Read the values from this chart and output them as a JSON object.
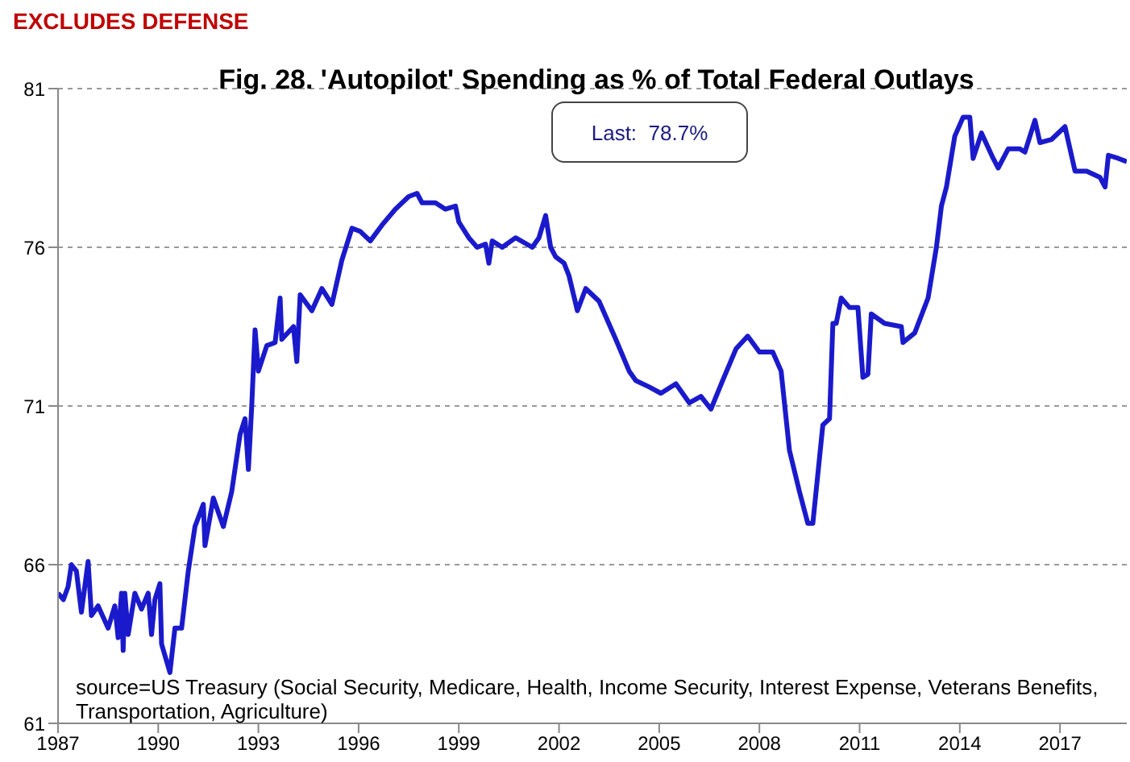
{
  "chart_data": {
    "type": "line",
    "title": "Fig. 28. 'Autopilot' Spending as % of Total Federal Outlays",
    "subtitle": "EXCLUDES DEFENSE",
    "annotations": [
      "Last:  78.7%",
      "source=US Treasury (Social Security, Medicare, Health, Income Security, Interest Expense, Veterans Benefits, Transportation, Agriculture)"
    ],
    "x": [
      1987.0,
      1987.16,
      1987.3,
      1987.4,
      1987.55,
      1987.7,
      1987.8,
      1987.9,
      1988.0,
      1988.2,
      1988.5,
      1988.7,
      1988.8,
      1988.9,
      1988.95,
      1989.0,
      1989.1,
      1989.3,
      1989.5,
      1989.7,
      1989.8,
      1989.9,
      1990.05,
      1990.1,
      1990.35,
      1990.5,
      1990.7,
      1990.9,
      1991.1,
      1991.35,
      1991.4,
      1991.65,
      1991.95,
      1992.2,
      1992.45,
      1992.6,
      1992.7,
      1992.8,
      1992.9,
      1993.0,
      1993.25,
      1993.5,
      1993.65,
      1993.7,
      1994.05,
      1994.15,
      1994.25,
      1994.6,
      1994.9,
      1995.2,
      1995.5,
      1995.8,
      1996.05,
      1996.35,
      1996.7,
      1997.1,
      1997.5,
      1997.75,
      1997.9,
      1998.3,
      1998.6,
      1998.9,
      1999.0,
      1999.3,
      1999.55,
      1999.8,
      1999.9,
      2000.0,
      2000.3,
      2000.7,
      2001.2,
      2001.4,
      2001.6,
      2001.75,
      2001.9,
      2002.15,
      2002.3,
      2002.55,
      2002.8,
      2003.2,
      2003.7,
      2004.1,
      2004.3,
      2004.7,
      2005.05,
      2005.5,
      2005.9,
      2006.25,
      2006.55,
      2006.9,
      2007.3,
      2007.65,
      2008.0,
      2008.4,
      2008.65,
      2008.9,
      2009.2,
      2009.45,
      2009.6,
      2009.9,
      2010.1,
      2010.2,
      2010.3,
      2010.45,
      2010.7,
      2010.95,
      2011.1,
      2011.25,
      2011.35,
      2011.75,
      2012.25,
      2012.3,
      2012.65,
      2013.05,
      2013.3,
      2013.45,
      2013.6,
      2013.85,
      2014.1,
      2014.3,
      2014.4,
      2014.65,
      2015.0,
      2015.15,
      2015.45,
      2015.8,
      2015.95,
      2016.25,
      2016.4,
      2016.75,
      2017.15,
      2017.45,
      2017.8,
      2018.2,
      2018.35,
      2018.45,
      2018.75,
      2019.0
    ],
    "series": [
      {
        "color": "#1a1acc",
        "values": [
          65.1,
          64.9,
          65.3,
          66.0,
          65.8,
          64.5,
          65.3,
          66.1,
          64.4,
          64.7,
          64.0,
          64.7,
          63.7,
          65.1,
          63.3,
          65.1,
          63.8,
          65.1,
          64.6,
          65.1,
          63.8,
          64.9,
          65.4,
          63.5,
          62.6,
          64.0,
          64.0,
          65.8,
          67.2,
          67.9,
          66.6,
          68.1,
          67.2,
          68.3,
          70.1,
          70.6,
          69.0,
          71.0,
          73.4,
          72.1,
          72.9,
          73.0,
          74.4,
          73.1,
          73.5,
          72.4,
          74.5,
          74.0,
          74.7,
          74.2,
          75.6,
          76.6,
          76.5,
          76.2,
          76.7,
          77.2,
          77.6,
          77.7,
          77.4,
          77.4,
          77.2,
          77.3,
          76.8,
          76.3,
          76.0,
          76.1,
          75.5,
          76.2,
          76.0,
          76.3,
          76.0,
          76.3,
          77.0,
          76.0,
          75.7,
          75.5,
          75.1,
          74.0,
          74.7,
          74.3,
          73.1,
          72.1,
          71.8,
          71.6,
          71.4,
          71.7,
          71.1,
          71.3,
          70.9,
          71.8,
          72.8,
          73.2,
          72.7,
          72.7,
          72.1,
          69.6,
          68.3,
          67.3,
          67.3,
          70.4,
          70.6,
          73.6,
          73.6,
          74.4,
          74.1,
          74.1,
          71.9,
          72.0,
          73.9,
          73.6,
          73.5,
          73.0,
          73.3,
          74.4,
          76.0,
          77.3,
          77.9,
          79.5,
          80.1,
          80.1,
          78.8,
          79.6,
          78.8,
          78.5,
          79.1,
          79.1,
          79.0,
          80.0,
          79.3,
          79.4,
          79.8,
          78.4,
          78.4,
          78.2,
          77.9,
          78.9,
          78.8,
          78.7
        ]
      }
    ],
    "xlim": [
      1987,
      2019
    ],
    "xticks": [
      1987,
      1990,
      1993,
      1996,
      1999,
      2002,
      2005,
      2008,
      2011,
      2014,
      2017
    ],
    "ylim": [
      61,
      81
    ],
    "yticks": [
      61,
      66,
      71,
      76,
      81
    ],
    "grid": "y",
    "line_style": "solid"
  }
}
